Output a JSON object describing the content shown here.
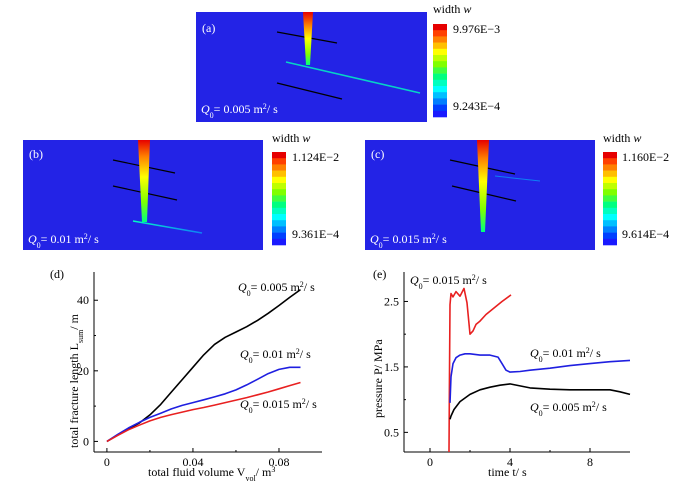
{
  "panels": [
    {
      "label": "(a)",
      "flow_rate_text": "Q",
      "flow_sub": "0",
      "flow_value": "= 0.005 m",
      "flow_sup": "2",
      "flow_unit": "/ s",
      "colorbar_title": "width",
      "colorbar_var": "w",
      "colorbar_max": "9.976E−3",
      "colorbar_min": "9.243E−4"
    },
    {
      "label": "(b)",
      "flow_rate_text": "Q",
      "flow_sub": "0",
      "flow_value": "= 0.01 m",
      "flow_sup": "2",
      "flow_unit": "/ s",
      "colorbar_title": "width",
      "colorbar_var": "w",
      "colorbar_max": "1.124E−2",
      "colorbar_min": "9.361E−4"
    },
    {
      "label": "(c)",
      "flow_rate_text": "Q",
      "flow_sub": "0",
      "flow_value": "= 0.015 m",
      "flow_sup": "2",
      "flow_unit": "/ s",
      "colorbar_title": "width",
      "colorbar_var": "w",
      "colorbar_max": "1.160E−2",
      "colorbar_min": "9.614E−4"
    }
  ],
  "colors": {
    "background_blue": "#2323e6",
    "colorbar": [
      "#e60000",
      "#ff4000",
      "#ff8000",
      "#ffbf00",
      "#ffff00",
      "#bfff00",
      "#80ff00",
      "#40ff40",
      "#00ff80",
      "#00ffbf",
      "#00ffff",
      "#00bfff",
      "#0080ff",
      "#0040ff",
      "#1a1aff"
    ],
    "series_black": "#000000",
    "series_blue": "#1f1fe0",
    "series_red": "#e82020"
  },
  "chart_data": [
    {
      "type": "line",
      "panel_label": "(d)",
      "xlabel": "total fluid volume V",
      "xlabel_sub": "vol",
      "xlabel_unit": "/ m",
      "xlabel_sup": "3",
      "ylabel": "total fracture length L",
      "ylabel_sub": "sum",
      "ylabel_unit": "/ m",
      "xlim": [
        -0.006,
        0.1
      ],
      "ylim": [
        -3,
        48
      ],
      "xticks": [
        0,
        0.04,
        0.08
      ],
      "xtick_labels": [
        "0",
        "0.04",
        "0.08"
      ],
      "yticks": [
        0,
        20,
        40
      ],
      "ytick_labels": [
        "0",
        "20",
        "40"
      ],
      "series": [
        {
          "name": "Q0 = 0.005 m2/s",
          "label_parts": [
            "Q",
            "0",
            "= 0.005 m",
            "2",
            "/ s"
          ],
          "color": "#000000",
          "x": [
            0,
            0.005,
            0.01,
            0.015,
            0.02,
            0.025,
            0.03,
            0.035,
            0.04,
            0.045,
            0.05,
            0.055,
            0.06,
            0.065,
            0.07,
            0.075,
            0.08,
            0.085,
            0.09
          ],
          "y": [
            0,
            1.8,
            3.5,
            5.2,
            7.5,
            10.5,
            14,
            17.5,
            21,
            24.5,
            27.5,
            29.5,
            31,
            32.5,
            34.3,
            36.3,
            38.5,
            40.8,
            43
          ]
        },
        {
          "name": "Q0 = 0.01 m2/s",
          "label_parts": [
            "Q",
            "0",
            "= 0.01 m",
            "2",
            "/ s"
          ],
          "color": "#1f1fe0",
          "x": [
            0,
            0.005,
            0.01,
            0.015,
            0.02,
            0.025,
            0.03,
            0.035,
            0.04,
            0.045,
            0.05,
            0.055,
            0.06,
            0.065,
            0.07,
            0.075,
            0.08,
            0.085,
            0.09
          ],
          "y": [
            0,
            2,
            3.8,
            5.4,
            6.8,
            8,
            9.2,
            10.2,
            11,
            11.8,
            12.6,
            13.5,
            14.6,
            16,
            17.6,
            19.2,
            20.4,
            21,
            21
          ]
        },
        {
          "name": "Q0 = 0.015 m2/s",
          "label_parts": [
            "Q",
            "0",
            "= 0.015 m",
            "2",
            "/ s"
          ],
          "color": "#e82020",
          "x": [
            0,
            0.005,
            0.01,
            0.015,
            0.02,
            0.025,
            0.03,
            0.035,
            0.04,
            0.045,
            0.05,
            0.055,
            0.06,
            0.065,
            0.07,
            0.075,
            0.08,
            0.085,
            0.09
          ],
          "y": [
            0,
            1.7,
            3.3,
            4.6,
            5.8,
            6.8,
            7.6,
            8.3,
            9,
            9.6,
            10.3,
            11,
            11.7,
            12.4,
            13.2,
            14,
            14.9,
            15.8,
            16.7
          ]
        }
      ]
    },
    {
      "type": "line",
      "panel_label": "(e)",
      "xlabel": "time t",
      "xlabel_unit": "/ s",
      "ylabel": "pressure P",
      "ylabel_unit": "/ MPa",
      "xlim": [
        -1.3,
        10
      ],
      "ylim": [
        0.2,
        2.95
      ],
      "xticks": [
        0,
        4,
        8
      ],
      "xtick_labels": [
        "0",
        "4",
        "8"
      ],
      "yticks": [
        0.5,
        1.5,
        2.5
      ],
      "ytick_labels": [
        "0.5",
        "1.5",
        "2.5"
      ],
      "series": [
        {
          "name": "Q0 = 0.015 m2/s",
          "label_parts": [
            "Q",
            "0",
            "= 0.015 m",
            "2",
            "/ s"
          ],
          "color": "#e82020",
          "x": [
            0.95,
            0.97,
            1.0,
            1.05,
            1.15,
            1.3,
            1.5,
            1.7,
            1.85,
            2.0,
            2.15,
            2.3,
            2.5,
            2.8,
            3.2,
            3.6,
            4.05
          ],
          "y": [
            0.2,
            1.2,
            2.45,
            2.62,
            2.57,
            2.65,
            2.58,
            2.7,
            2.48,
            2.0,
            2.05,
            2.15,
            2.2,
            2.3,
            2.4,
            2.5,
            2.6
          ]
        },
        {
          "name": "Q0 = 0.01 m2/s",
          "label_parts": [
            "Q",
            "0",
            "= 0.01 m",
            "2",
            "/ s"
          ],
          "color": "#1f1fe0",
          "x": [
            1.0,
            1.05,
            1.15,
            1.3,
            1.5,
            1.75,
            2.0,
            2.5,
            3.0,
            3.4,
            3.6,
            3.8,
            4.0,
            4.5,
            5,
            6,
            7,
            8,
            9,
            10
          ],
          "y": [
            0.95,
            1.35,
            1.55,
            1.64,
            1.68,
            1.7,
            1.7,
            1.68,
            1.68,
            1.65,
            1.55,
            1.45,
            1.42,
            1.43,
            1.45,
            1.48,
            1.52,
            1.55,
            1.58,
            1.6
          ]
        },
        {
          "name": "Q0 = 0.005 m2/s",
          "label_parts": [
            "Q",
            "0",
            "= 0.005 m",
            "2",
            "/ s"
          ],
          "color": "#000000",
          "x": [
            1.0,
            1.05,
            1.2,
            1.5,
            2.0,
            2.5,
            3.0,
            3.5,
            4.0,
            4.5,
            5,
            6,
            7,
            8,
            9,
            9.5,
            10
          ],
          "y": [
            0.7,
            0.75,
            0.85,
            0.97,
            1.08,
            1.15,
            1.19,
            1.22,
            1.24,
            1.21,
            1.18,
            1.16,
            1.15,
            1.15,
            1.15,
            1.12,
            1.08
          ]
        }
      ]
    }
  ]
}
